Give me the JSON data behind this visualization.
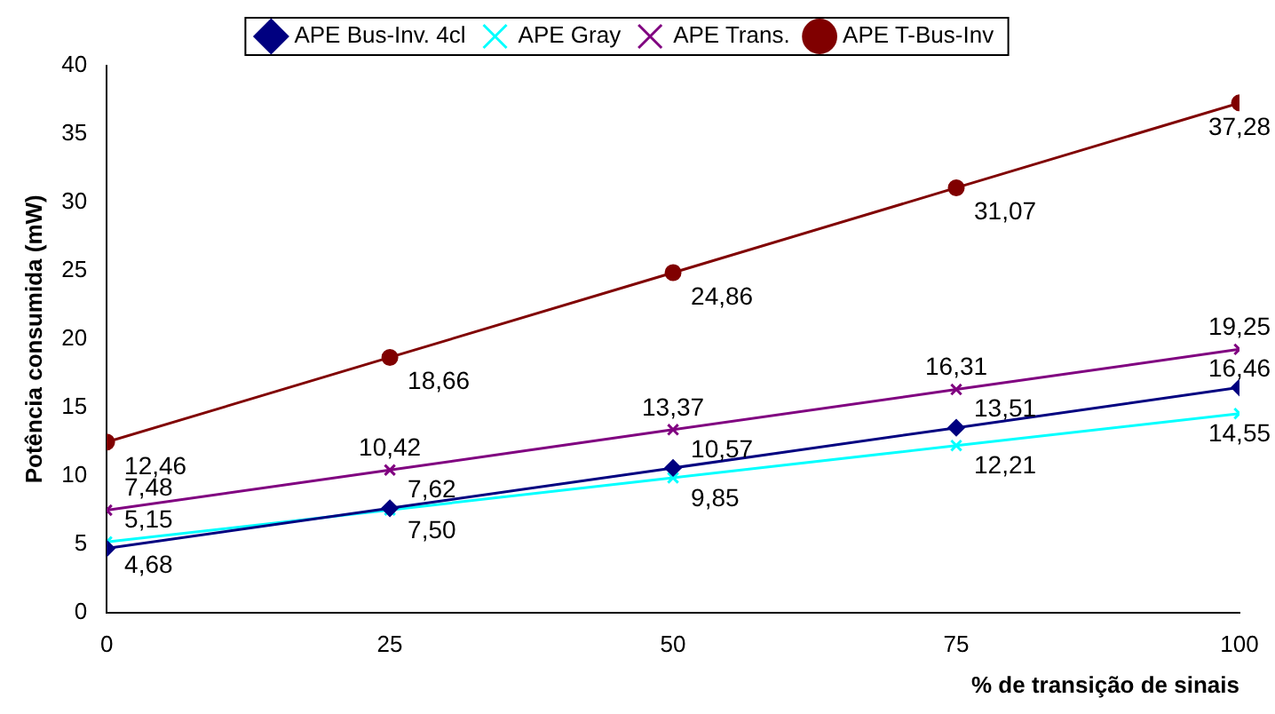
{
  "chart_data": {
    "type": "line",
    "xlabel": "% de transição de sinais",
    "ylabel": "Potência consumida (mW)",
    "x": [
      0,
      25,
      50,
      75,
      100
    ],
    "xlim": [
      0,
      100
    ],
    "xticks": [
      0,
      25,
      50,
      75,
      100
    ],
    "ylim": [
      0,
      40
    ],
    "yticks": [
      0,
      5,
      10,
      15,
      20,
      25,
      30,
      35,
      40
    ],
    "grid": false,
    "legend": "top",
    "line_style": "solid",
    "series": [
      {
        "name": "APE Bus-Inv. 4cl",
        "color": "#000080",
        "marker": "diamond",
        "values": [
          4.68,
          7.62,
          10.57,
          13.51,
          16.46
        ],
        "value_labels": [
          "4,68",
          "7,62",
          "10,57",
          "13,51",
          "16,46"
        ]
      },
      {
        "name": "APE Gray",
        "color": "#00ffff",
        "marker": "cross",
        "values": [
          5.15,
          7.5,
          9.85,
          12.21,
          14.55
        ],
        "value_labels": [
          "5,15",
          "7,50",
          "9,85",
          "12,21",
          "14,55"
        ]
      },
      {
        "name": "APE Trans.",
        "color": "#800080",
        "marker": "cross",
        "values": [
          7.48,
          10.42,
          13.37,
          16.31,
          19.25
        ],
        "value_labels": [
          "7,48",
          "10,42",
          "13,37",
          "16,31",
          "19,25"
        ]
      },
      {
        "name": "APE T-Bus-Inv",
        "color": "#800000",
        "marker": "circle",
        "values": [
          12.46,
          18.66,
          24.86,
          31.07,
          37.28
        ],
        "value_labels": [
          "12,46",
          "18,66",
          "24,86",
          "31,07",
          "37,28"
        ]
      }
    ]
  }
}
